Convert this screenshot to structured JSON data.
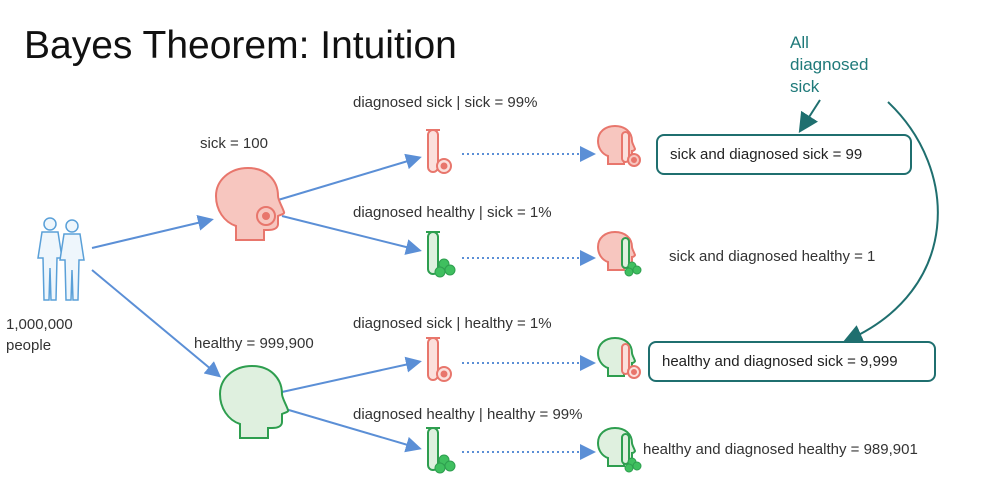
{
  "title": "Bayes Theorem: Intuition",
  "population": {
    "line1": "1,000,000",
    "line2": "people"
  },
  "groups": {
    "sick": "sick = 100",
    "healthy": "healthy = 999,900"
  },
  "conditionals": {
    "diag_sick_given_sick": "diagnosed sick | sick = 99%",
    "diag_healthy_given_sick": "diagnosed healthy | sick = 1%",
    "diag_sick_given_healthy": "diagnosed sick | healthy = 1%",
    "diag_healthy_given_healthy": "diagnosed healthy | healthy = 99%"
  },
  "outcomes": {
    "sick_diag_sick": "sick and diagnosed sick = 99",
    "sick_diag_healthy": "sick and diagnosed healthy = 1",
    "healthy_diag_sick": "healthy and diagnosed sick = 9,999",
    "healthy_diag_healthy": "healthy and diagnosed healthy = 989,901"
  },
  "annotation": {
    "line1": "All",
    "line2": "diagnosed",
    "line3": "sick"
  },
  "colors": {
    "arrow": "#5b8fd6",
    "sick_fill": "#f7c6bf",
    "sick_stroke": "#e8766c",
    "healthy_fill": "#dff0df",
    "healthy_stroke": "#2e9e4f",
    "people": "#5aa0d8",
    "box_border": "#1f6f6f",
    "annotation": "#1f7a7a"
  },
  "icons": [
    "people-icon",
    "head-icon",
    "test-tube-icon",
    "gear-icon",
    "clover-icon"
  ]
}
